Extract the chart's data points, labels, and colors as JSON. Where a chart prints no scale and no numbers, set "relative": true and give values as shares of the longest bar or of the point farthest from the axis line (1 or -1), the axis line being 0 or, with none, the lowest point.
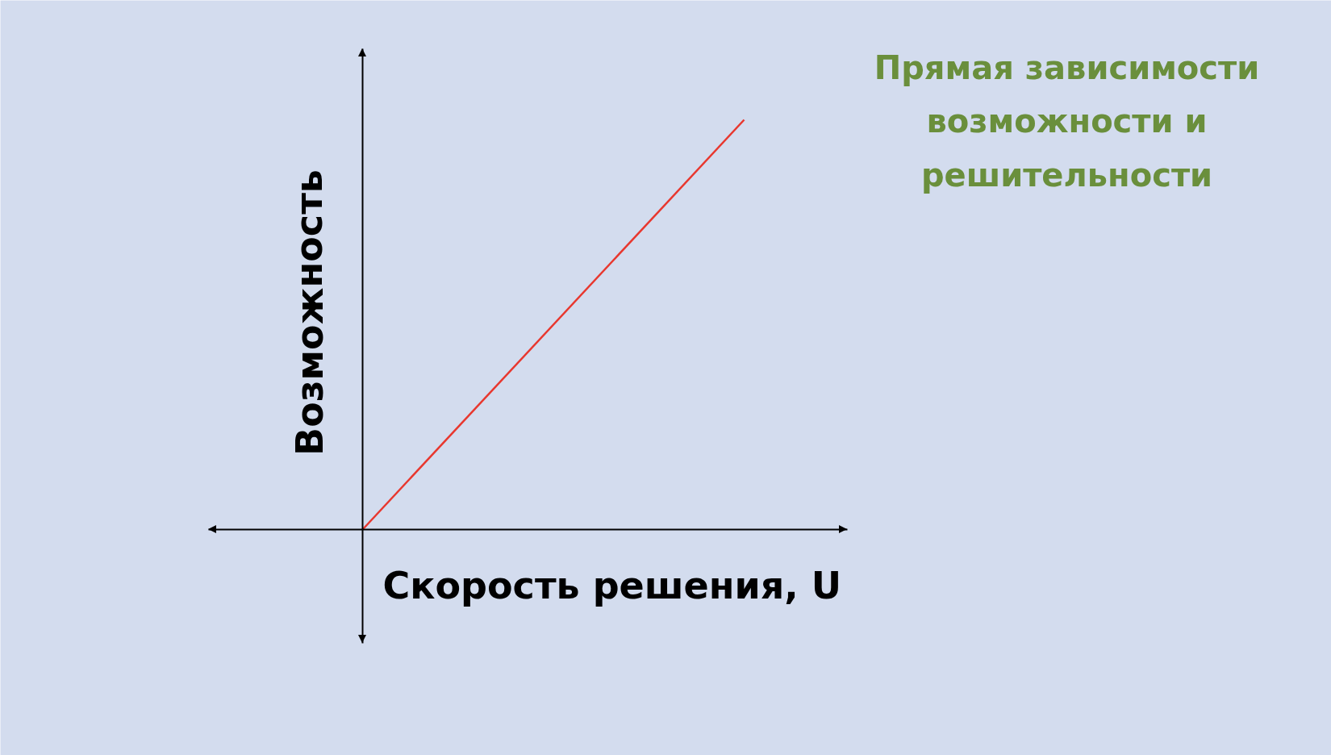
{
  "chart_data": {
    "type": "line",
    "relative": true,
    "title": "Прямая зависимости\nвозможности и\nрешительности",
    "xlabel": "Скорость решения, U",
    "ylabel": "Возможность",
    "categories": [
      null,
      null
    ],
    "values": [
      0,
      1
    ],
    "color": "#e8372e"
  }
}
